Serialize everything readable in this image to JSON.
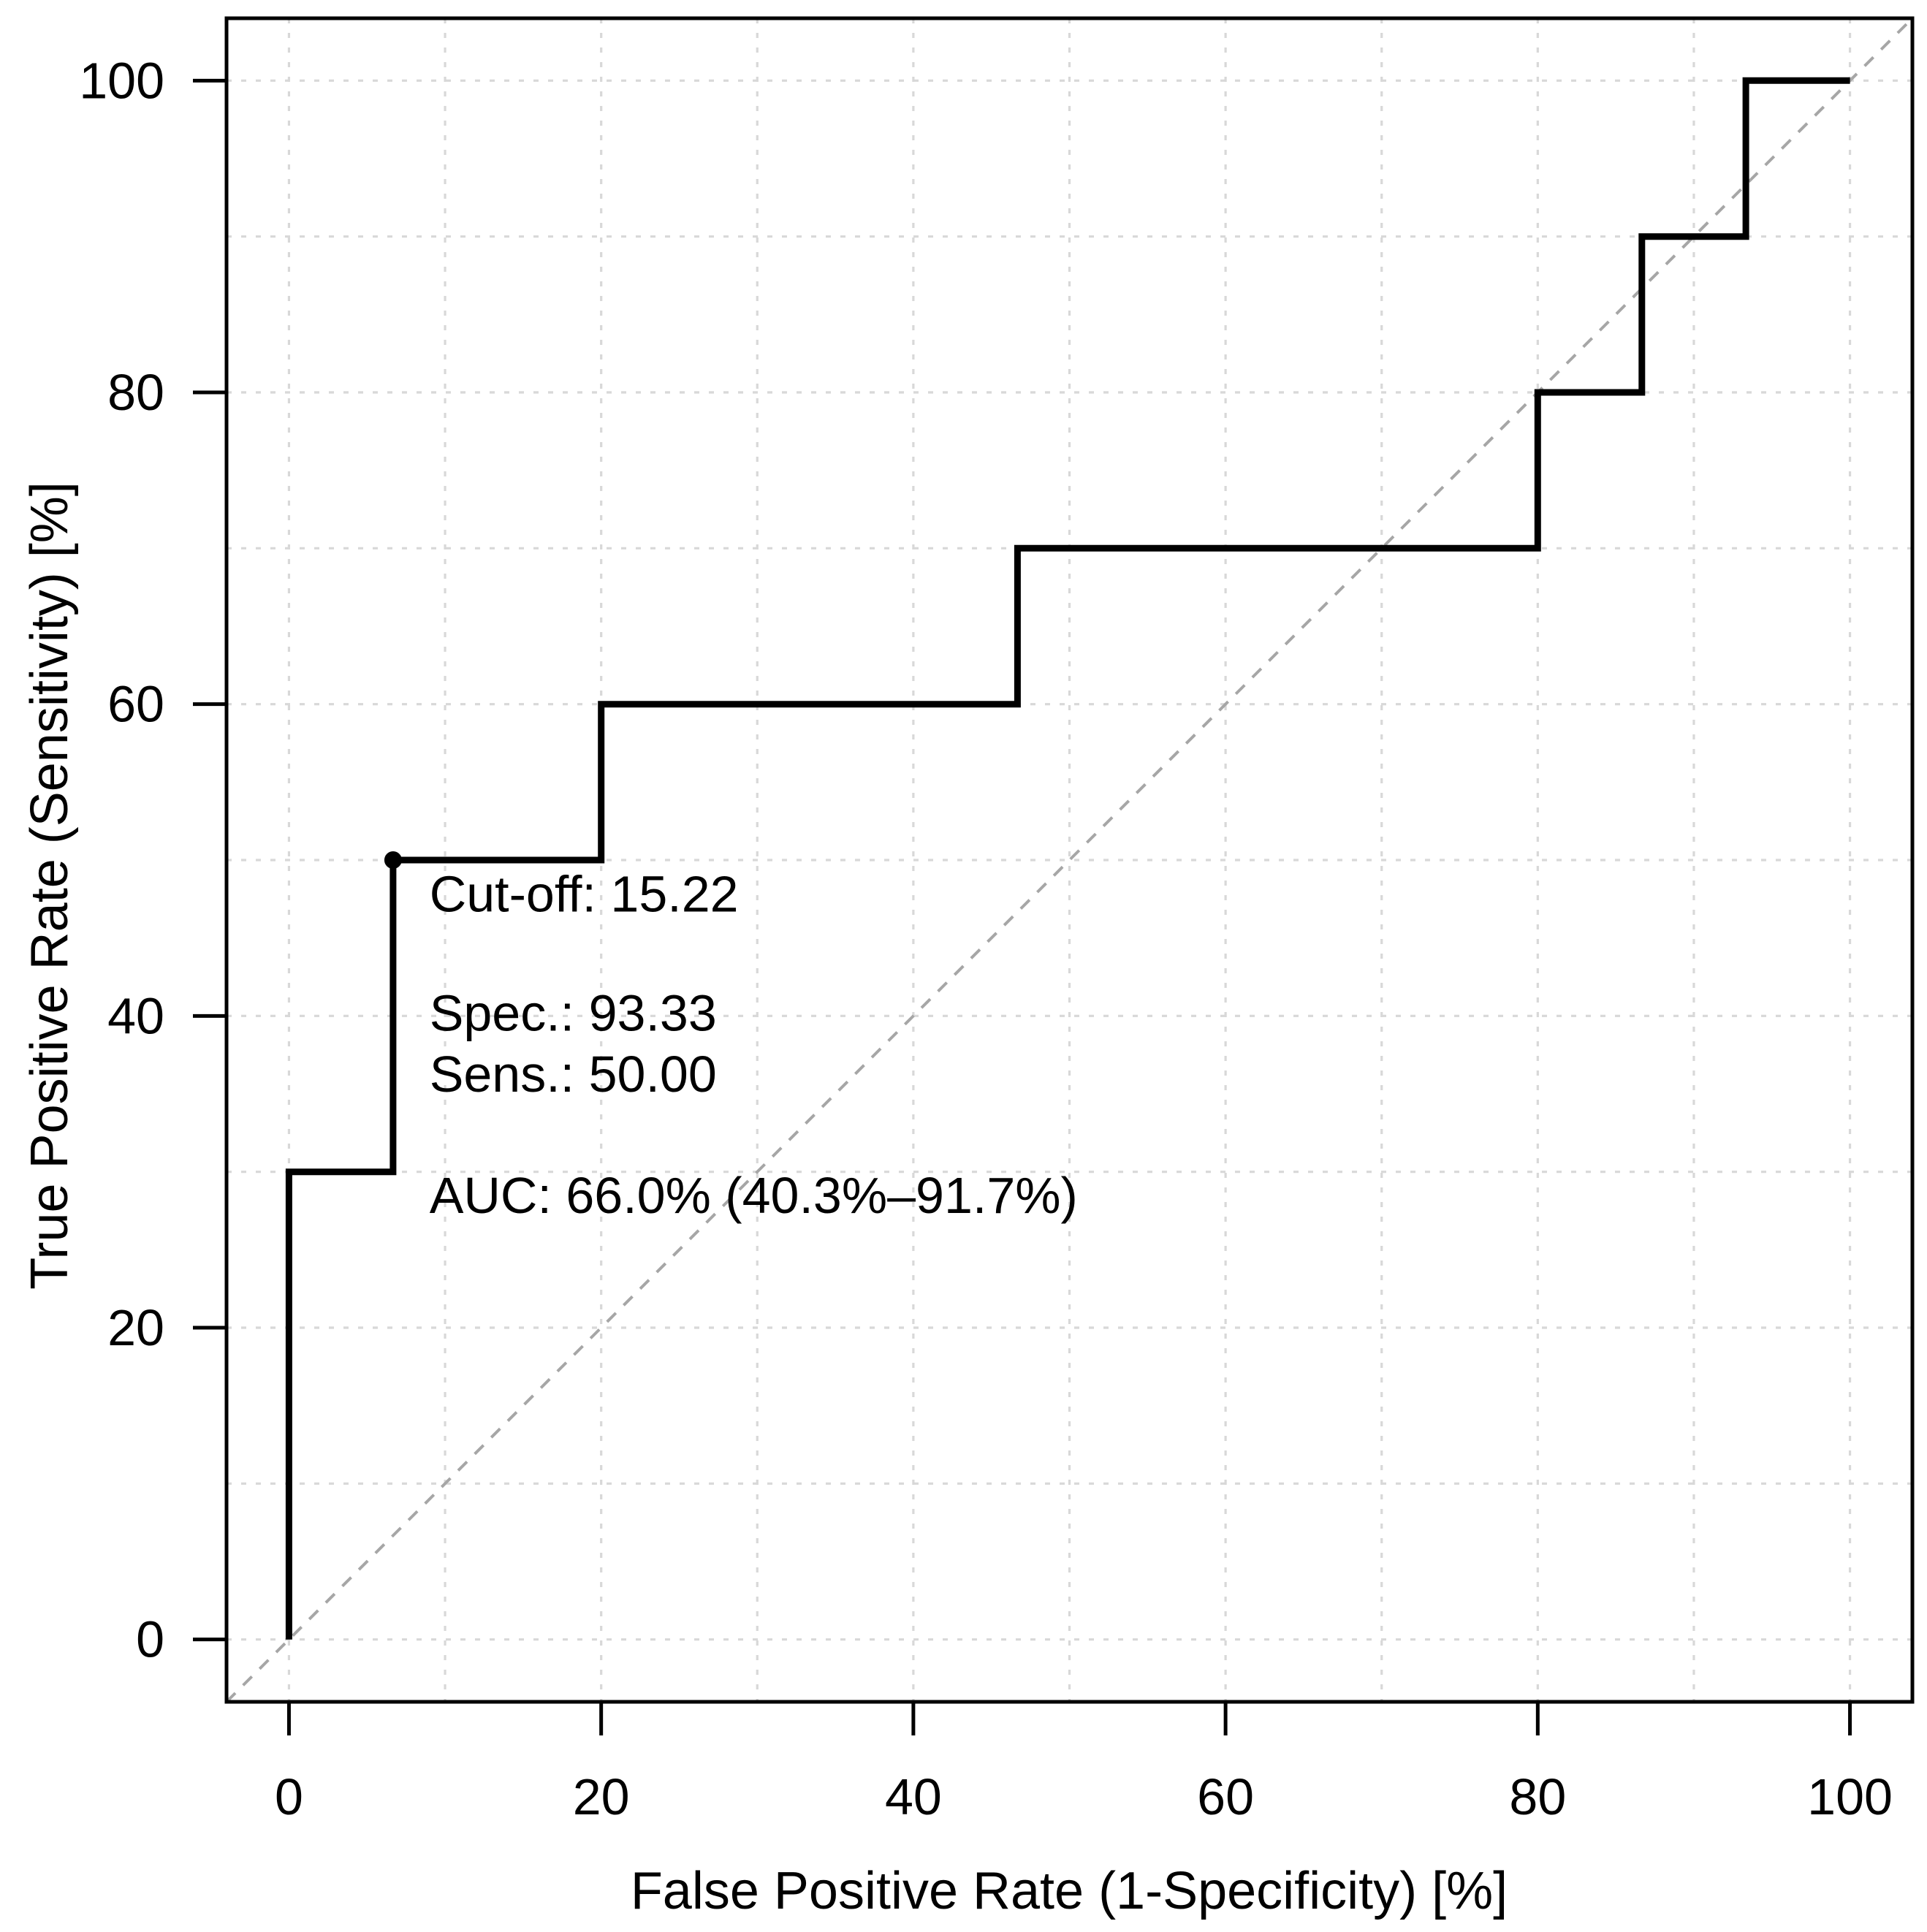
{
  "chart_data": {
    "type": "line",
    "subtype": "roc_step_curve",
    "title": "",
    "xlabel": "False Positive Rate (1-Specificity) [%]",
    "ylabel": "True Positive Rate (Sensitivity) [%]",
    "xlim": [
      0,
      100
    ],
    "ylim": [
      0,
      100
    ],
    "xticks": [
      0,
      20,
      40,
      60,
      80,
      100
    ],
    "yticks": [
      0,
      20,
      40,
      60,
      80,
      100
    ],
    "grid": {
      "visible": true,
      "step": 10,
      "style": "dotted",
      "color": "#d8d8d8"
    },
    "reference_line": {
      "name": "chance-diagonal",
      "from": [
        0,
        0
      ],
      "to": [
        100,
        100
      ],
      "style": "dashed",
      "color": "#a6a6a6"
    },
    "series": [
      {
        "name": "ROC curve",
        "color": "#000000",
        "linewidth": 9,
        "points": [
          [
            0,
            0
          ],
          [
            0,
            30
          ],
          [
            6.67,
            30
          ],
          [
            6.67,
            50
          ],
          [
            20,
            50
          ],
          [
            20,
            60
          ],
          [
            46.67,
            60
          ],
          [
            46.67,
            70
          ],
          [
            80,
            70
          ],
          [
            80,
            80
          ],
          [
            86.67,
            80
          ],
          [
            86.67,
            90
          ],
          [
            93.33,
            90
          ],
          [
            93.33,
            100
          ],
          [
            100,
            100
          ]
        ]
      }
    ],
    "optimal_point": {
      "x": 6.67,
      "y": 50,
      "marker": "filled-circle",
      "color": "#000000"
    },
    "annotations": [
      {
        "id": "cutoff",
        "text": "Cut-off: 15.22",
        "x": 9,
        "y": 46.7
      },
      {
        "id": "spec",
        "text": "Spec.: 93.33",
        "x": 9,
        "y": 39.05
      },
      {
        "id": "sens",
        "text": "Sens.: 50.00",
        "x": 9,
        "y": 35.15
      },
      {
        "id": "auc",
        "text": "AUC: 66.0% (40.3%–91.7%)",
        "x": 9,
        "y": 27.35
      }
    ],
    "axis_color": "#000000",
    "background": "#ffffff",
    "legend": {
      "visible": false
    }
  }
}
